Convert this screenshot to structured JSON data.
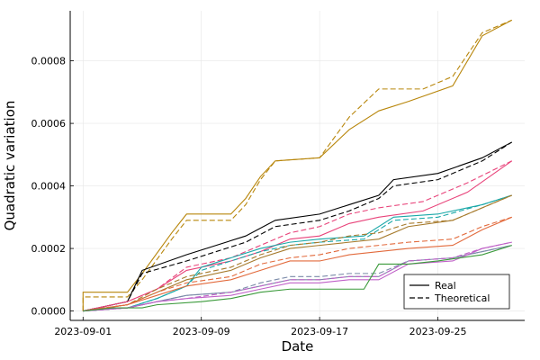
{
  "chart_data": {
    "type": "line",
    "xlabel": "Date",
    "ylabel": "Quadratic variation",
    "x_start": "2023-09-01",
    "x_end": "2023-09-30",
    "xticks": [
      "2023-09-01",
      "2023-09-09",
      "2023-09-17",
      "2023-09-25"
    ],
    "ylim": [
      0,
      0.00096
    ],
    "yticks": [
      0,
      0.0002,
      0.0004,
      0.0006,
      0.0008
    ],
    "ytick_labels": [
      "0.0000",
      "0.0002",
      "0.0004",
      "0.0006",
      "0.0008"
    ],
    "grid": true,
    "legend": {
      "position": "bottom-right",
      "entries": [
        {
          "label": "Real",
          "style": "solid"
        },
        {
          "label": "Theoretical",
          "style": "dashed"
        }
      ]
    },
    "series": [
      {
        "color": "#b8860b",
        "real": [
          [
            "2023-09-01",
            0
          ],
          [
            "2023-09-01",
            6e-05
          ],
          [
            "2023-09-04",
            6e-05
          ],
          [
            "2023-09-05",
            0.00012
          ],
          [
            "2023-09-07",
            0.00025
          ],
          [
            "2023-09-08",
            0.00031
          ],
          [
            "2023-09-11",
            0.00031
          ],
          [
            "2023-09-12",
            0.00036
          ],
          [
            "2023-09-13",
            0.00043
          ],
          [
            "2023-09-14",
            0.00048
          ],
          [
            "2023-09-17",
            0.00049
          ],
          [
            "2023-09-19",
            0.00058
          ],
          [
            "2023-09-21",
            0.00064
          ],
          [
            "2023-09-23",
            0.00067
          ],
          [
            "2023-09-26",
            0.00072
          ],
          [
            "2023-09-28",
            0.00088
          ],
          [
            "2023-09-30",
            0.00093
          ]
        ],
        "theoretical": [
          [
            "2023-09-01",
            0
          ],
          [
            "2023-09-01",
            4.5e-05
          ],
          [
            "2023-09-04",
            4.5e-05
          ],
          [
            "2023-09-05",
            0.0001
          ],
          [
            "2023-09-07",
            0.00023
          ],
          [
            "2023-09-08",
            0.00029
          ],
          [
            "2023-09-11",
            0.00029
          ],
          [
            "2023-09-12",
            0.00034
          ],
          [
            "2023-09-13",
            0.00042
          ],
          [
            "2023-09-14",
            0.00048
          ],
          [
            "2023-09-17",
            0.00049
          ],
          [
            "2023-09-19",
            0.00062
          ],
          [
            "2023-09-21",
            0.00071
          ],
          [
            "2023-09-24",
            0.00071
          ],
          [
            "2023-09-26",
            0.00075
          ],
          [
            "2023-09-28",
            0.00089
          ],
          [
            "2023-09-30",
            0.00093
          ]
        ]
      },
      {
        "color": "#000000",
        "real": [
          [
            "2023-09-01",
            0
          ],
          [
            "2023-09-04",
            3e-05
          ],
          [
            "2023-09-05",
            0.00013
          ],
          [
            "2023-09-08",
            0.00018
          ],
          [
            "2023-09-10",
            0.00021
          ],
          [
            "2023-09-12",
            0.00024
          ],
          [
            "2023-09-14",
            0.00029
          ],
          [
            "2023-09-17",
            0.00031
          ],
          [
            "2023-09-19",
            0.00034
          ],
          [
            "2023-09-21",
            0.00037
          ],
          [
            "2023-09-22",
            0.00042
          ],
          [
            "2023-09-25",
            0.00044
          ],
          [
            "2023-09-28",
            0.00049
          ],
          [
            "2023-09-30",
            0.00054
          ]
        ],
        "theoretical": [
          [
            "2023-09-01",
            0
          ],
          [
            "2023-09-04",
            3e-05
          ],
          [
            "2023-09-05",
            0.00012
          ],
          [
            "2023-09-08",
            0.00016
          ],
          [
            "2023-09-10",
            0.00019
          ],
          [
            "2023-09-12",
            0.00022
          ],
          [
            "2023-09-14",
            0.00027
          ],
          [
            "2023-09-17",
            0.00029
          ],
          [
            "2023-09-19",
            0.00032
          ],
          [
            "2023-09-21",
            0.00036
          ],
          [
            "2023-09-22",
            0.0004
          ],
          [
            "2023-09-25",
            0.00042
          ],
          [
            "2023-09-28",
            0.00048
          ],
          [
            "2023-09-30",
            0.00054
          ]
        ]
      },
      {
        "color": "#e8437a",
        "real": [
          [
            "2023-09-01",
            0
          ],
          [
            "2023-09-04",
            3e-05
          ],
          [
            "2023-09-06",
            7e-05
          ],
          [
            "2023-09-08",
            0.00013
          ],
          [
            "2023-09-11",
            0.00016
          ],
          [
            "2023-09-13",
            0.00019
          ],
          [
            "2023-09-15",
            0.00023
          ],
          [
            "2023-09-17",
            0.00024
          ],
          [
            "2023-09-19",
            0.00028
          ],
          [
            "2023-09-21",
            0.0003
          ],
          [
            "2023-09-24",
            0.00032
          ],
          [
            "2023-09-27",
            0.00038
          ],
          [
            "2023-09-30",
            0.00048
          ]
        ],
        "theoretical": [
          [
            "2023-09-01",
            0
          ],
          [
            "2023-09-04",
            3e-05
          ],
          [
            "2023-09-06",
            7e-05
          ],
          [
            "2023-09-08",
            0.00014
          ],
          [
            "2023-09-11",
            0.00017
          ],
          [
            "2023-09-13",
            0.00021
          ],
          [
            "2023-09-15",
            0.00025
          ],
          [
            "2023-09-17",
            0.00027
          ],
          [
            "2023-09-19",
            0.00031
          ],
          [
            "2023-09-21",
            0.00033
          ],
          [
            "2023-09-24",
            0.00035
          ],
          [
            "2023-09-27",
            0.00041
          ],
          [
            "2023-09-30",
            0.00048
          ]
        ]
      },
      {
        "color": "#1aa8a8",
        "real": [
          [
            "2023-09-01",
            0
          ],
          [
            "2023-09-04",
            1e-05
          ],
          [
            "2023-09-06",
            4e-05
          ],
          [
            "2023-09-08",
            8e-05
          ],
          [
            "2023-09-09",
            0.00014
          ],
          [
            "2023-09-11",
            0.00017
          ],
          [
            "2023-09-13",
            0.0002
          ],
          [
            "2023-09-15",
            0.00022
          ],
          [
            "2023-09-17",
            0.00023
          ],
          [
            "2023-09-20",
            0.00024
          ],
          [
            "2023-09-22",
            0.0003
          ],
          [
            "2023-09-25",
            0.00031
          ],
          [
            "2023-09-28",
            0.00034
          ],
          [
            "2023-09-30",
            0.00037
          ]
        ],
        "theoretical": [
          [
            "2023-09-01",
            0
          ],
          [
            "2023-09-04",
            1e-05
          ],
          [
            "2023-09-06",
            4e-05
          ],
          [
            "2023-09-08",
            8e-05
          ],
          [
            "2023-09-09",
            0.00013
          ],
          [
            "2023-09-11",
            0.00016
          ],
          [
            "2023-09-13",
            0.00019
          ],
          [
            "2023-09-15",
            0.00021
          ],
          [
            "2023-09-17",
            0.00022
          ],
          [
            "2023-09-20",
            0.00023
          ],
          [
            "2023-09-22",
            0.00029
          ],
          [
            "2023-09-25",
            0.0003
          ],
          [
            "2023-09-28",
            0.00034
          ],
          [
            "2023-09-30",
            0.00037
          ]
        ]
      },
      {
        "color": "#a67a2c",
        "real": [
          [
            "2023-09-01",
            0
          ],
          [
            "2023-09-04",
            2e-05
          ],
          [
            "2023-09-06",
            6e-05
          ],
          [
            "2023-09-08",
            0.0001
          ],
          [
            "2023-09-11",
            0.00013
          ],
          [
            "2023-09-13",
            0.00017
          ],
          [
            "2023-09-15",
            0.0002
          ],
          [
            "2023-09-17",
            0.00021
          ],
          [
            "2023-09-19",
            0.00022
          ],
          [
            "2023-09-21",
            0.00023
          ],
          [
            "2023-09-23",
            0.00027
          ],
          [
            "2023-09-26",
            0.00029
          ],
          [
            "2023-09-28",
            0.00033
          ],
          [
            "2023-09-30",
            0.00037
          ]
        ],
        "theoretical": [
          [
            "2023-09-01",
            0
          ],
          [
            "2023-09-04",
            2e-05
          ],
          [
            "2023-09-06",
            7e-05
          ],
          [
            "2023-09-08",
            0.00011
          ],
          [
            "2023-09-11",
            0.00014
          ],
          [
            "2023-09-13",
            0.00018
          ],
          [
            "2023-09-15",
            0.00021
          ],
          [
            "2023-09-17",
            0.00022
          ],
          [
            "2023-09-19",
            0.00024
          ],
          [
            "2023-09-21",
            0.00025
          ],
          [
            "2023-09-23",
            0.00028
          ],
          [
            "2023-09-26",
            0.00029
          ],
          [
            "2023-09-28",
            0.00033
          ],
          [
            "2023-09-30",
            0.00037
          ]
        ]
      },
      {
        "color": "#e26a3c",
        "real": [
          [
            "2023-09-01",
            0
          ],
          [
            "2023-09-04",
            2e-05
          ],
          [
            "2023-09-06",
            5e-05
          ],
          [
            "2023-09-08",
            8e-05
          ],
          [
            "2023-09-11",
            0.0001
          ],
          [
            "2023-09-13",
            0.00013
          ],
          [
            "2023-09-15",
            0.00016
          ],
          [
            "2023-09-17",
            0.00016
          ],
          [
            "2023-09-19",
            0.00018
          ],
          [
            "2023-09-21",
            0.00019
          ],
          [
            "2023-09-23",
            0.0002
          ],
          [
            "2023-09-26",
            0.00021
          ],
          [
            "2023-09-28",
            0.00026
          ],
          [
            "2023-09-30",
            0.0003
          ]
        ],
        "theoretical": [
          [
            "2023-09-01",
            0
          ],
          [
            "2023-09-04",
            2e-05
          ],
          [
            "2023-09-06",
            6e-05
          ],
          [
            "2023-09-08",
            9e-05
          ],
          [
            "2023-09-11",
            0.00011
          ],
          [
            "2023-09-13",
            0.00015
          ],
          [
            "2023-09-15",
            0.00017
          ],
          [
            "2023-09-17",
            0.00018
          ],
          [
            "2023-09-19",
            0.0002
          ],
          [
            "2023-09-21",
            0.00021
          ],
          [
            "2023-09-23",
            0.00022
          ],
          [
            "2023-09-26",
            0.00023
          ],
          [
            "2023-09-28",
            0.00027
          ],
          [
            "2023-09-30",
            0.0003
          ]
        ]
      },
      {
        "color": "#7a8aa8",
        "real": [
          [
            "2023-09-01",
            0
          ],
          [
            "2023-09-04",
            1e-05
          ],
          [
            "2023-09-06",
            3e-05
          ],
          [
            "2023-09-08",
            5e-05
          ],
          [
            "2023-09-11",
            6e-05
          ],
          [
            "2023-09-13",
            8e-05
          ],
          [
            "2023-09-15",
            0.0001
          ],
          [
            "2023-09-17",
            0.0001
          ],
          [
            "2023-09-19",
            0.00011
          ],
          [
            "2023-09-21",
            0.00011
          ],
          [
            "2023-09-23",
            0.00016
          ],
          [
            "2023-09-26",
            0.00017
          ],
          [
            "2023-09-28",
            0.00019
          ],
          [
            "2023-09-30",
            0.00021
          ]
        ],
        "theoretical": [
          [
            "2023-09-01",
            0
          ],
          [
            "2023-09-04",
            1e-05
          ],
          [
            "2023-09-06",
            3e-05
          ],
          [
            "2023-09-08",
            5e-05
          ],
          [
            "2023-09-11",
            6e-05
          ],
          [
            "2023-09-13",
            9e-05
          ],
          [
            "2023-09-15",
            0.00011
          ],
          [
            "2023-09-17",
            0.00011
          ],
          [
            "2023-09-19",
            0.00012
          ],
          [
            "2023-09-21",
            0.00012
          ],
          [
            "2023-09-23",
            0.00016
          ],
          [
            "2023-09-26",
            0.00017
          ],
          [
            "2023-09-28",
            0.00019
          ],
          [
            "2023-09-30",
            0.00021
          ]
        ]
      },
      {
        "color": "#c061c8",
        "real": [
          [
            "2023-09-01",
            0
          ],
          [
            "2023-09-04",
            1e-05
          ],
          [
            "2023-09-06",
            3e-05
          ],
          [
            "2023-09-08",
            4e-05
          ],
          [
            "2023-09-11",
            5e-05
          ],
          [
            "2023-09-13",
            7e-05
          ],
          [
            "2023-09-15",
            9e-05
          ],
          [
            "2023-09-17",
            9e-05
          ],
          [
            "2023-09-19",
            0.0001
          ],
          [
            "2023-09-21",
            0.0001
          ],
          [
            "2023-09-23",
            0.00015
          ],
          [
            "2023-09-26",
            0.00016
          ],
          [
            "2023-09-28",
            0.0002
          ],
          [
            "2023-09-30",
            0.00022
          ]
        ],
        "theoretical": [
          [
            "2023-09-01",
            0
          ],
          [
            "2023-09-04",
            1e-05
          ],
          [
            "2023-09-06",
            3e-05
          ],
          [
            "2023-09-08",
            4e-05
          ],
          [
            "2023-09-11",
            6e-05
          ],
          [
            "2023-09-13",
            8e-05
          ],
          [
            "2023-09-15",
            0.0001
          ],
          [
            "2023-09-17",
            0.0001
          ],
          [
            "2023-09-19",
            0.00011
          ],
          [
            "2023-09-21",
            0.00011
          ],
          [
            "2023-09-23",
            0.00016
          ],
          [
            "2023-09-26",
            0.00017
          ],
          [
            "2023-09-28",
            0.0002
          ],
          [
            "2023-09-30",
            0.00022
          ]
        ]
      },
      {
        "color": "#3a9a3a",
        "real": [
          [
            "2023-09-01",
            0
          ],
          [
            "2023-09-03",
            1e-05
          ],
          [
            "2023-09-05",
            1e-05
          ],
          [
            "2023-09-06",
            2e-05
          ],
          [
            "2023-09-09",
            3e-05
          ],
          [
            "2023-09-11",
            4e-05
          ],
          [
            "2023-09-13",
            6e-05
          ],
          [
            "2023-09-15",
            7e-05
          ],
          [
            "2023-09-20",
            7e-05
          ],
          [
            "2023-09-21",
            0.00015
          ],
          [
            "2023-09-23",
            0.00015
          ],
          [
            "2023-09-25",
            0.00016
          ],
          [
            "2023-09-28",
            0.00018
          ],
          [
            "2023-09-30",
            0.00021
          ]
        ],
        "theoretical": []
      }
    ]
  }
}
